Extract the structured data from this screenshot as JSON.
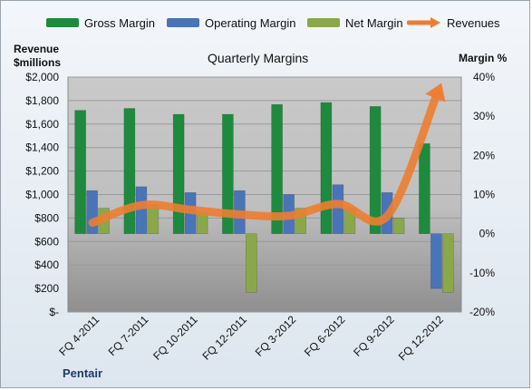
{
  "chart_data": {
    "type": "bar",
    "title": "Quarterly Margins",
    "brand": "Pentair",
    "left_axis": {
      "label_line1": "Revenue",
      "label_line2": "$millions",
      "ylim": [
        0,
        2000
      ],
      "ticks": [
        "$2,000",
        "$1,800",
        "$1,600",
        "$1,400",
        "$1,200",
        "$1,000",
        "$800",
        "$600",
        "$400",
        "$200",
        "$-"
      ]
    },
    "right_axis": {
      "label": "Margin %",
      "ylim": [
        -20,
        40
      ],
      "ticks": [
        "40%",
        "30%",
        "20%",
        "10%",
        "0%",
        "-10%",
        "-20%"
      ]
    },
    "categories": [
      "FQ 4-2011",
      "FQ 7-2011",
      "FQ 10-2011",
      "FQ 12-2011",
      "FQ 3-2012",
      "FQ 6-2012",
      "FQ 9-2012",
      "FQ 12-2012"
    ],
    "series": [
      {
        "name": "Gross Margin",
        "axis": "right",
        "color": "#1e8a3e",
        "values": [
          31.5,
          32,
          30.5,
          30.5,
          33,
          33.5,
          32.5,
          23
        ]
      },
      {
        "name": "Operating Margin",
        "axis": "right",
        "color": "#4a74b8",
        "values": [
          11,
          12,
          10.5,
          11,
          10,
          12.5,
          10.5,
          -14
        ]
      },
      {
        "name": "Net Margin",
        "axis": "right",
        "color": "#8aa84a",
        "values": [
          6.5,
          7.5,
          5.5,
          -15,
          6.5,
          6.5,
          4,
          -15
        ]
      },
      {
        "name": "Revenues",
        "axis": "left",
        "type": "line",
        "color": "#ed7d31",
        "values": [
          760,
          910,
          870,
          830,
          820,
          920,
          820,
          1850
        ]
      }
    ],
    "grid": true,
    "legend": "top"
  }
}
